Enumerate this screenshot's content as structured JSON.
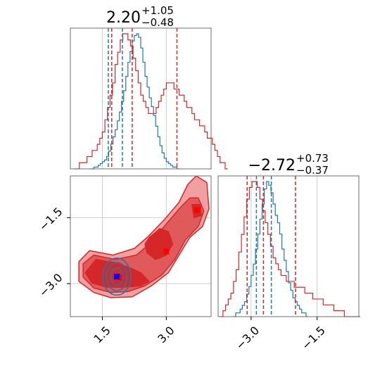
{
  "chart_data": {
    "type": "corner",
    "colors": {
      "series_a": "#1f77b4",
      "series_b": "#d62728",
      "fill_dark": "#d62728",
      "fill_mid": "#e05a5b",
      "fill_light": "#f0a0a1",
      "grid": "#cccccc",
      "axis": "#6e6e6e",
      "marker_a": "#0000ff",
      "marker_b": "#ff0000"
    },
    "parameters": [
      {
        "title_value": "2.20",
        "title_plus": "+1.05",
        "title_minus": "−0.48",
        "range": [
          0.75,
          4.05
        ],
        "ticks": [
          1.5,
          3.0
        ],
        "tick_labels": [
          "1.5",
          "3.0"
        ],
        "series_a_quantiles": [
          1.64,
          1.97
        ],
        "series_b_quantiles": [
          1.72,
          2.2,
          3.25
        ],
        "histogram_a": {
          "bin_width": 0.05,
          "start": 1.2,
          "counts": [
            0,
            0,
            1,
            1,
            2,
            3,
            4,
            5,
            7,
            10,
            14,
            18,
            22,
            27,
            32,
            38,
            44,
            52,
            60,
            66,
            72,
            75,
            76,
            74,
            68,
            60,
            52,
            46,
            40,
            35,
            30,
            24,
            18,
            13,
            9,
            6,
            4,
            3,
            2,
            1,
            1,
            0
          ]
        },
        "histogram_b": {
          "bin_width": 0.06,
          "start": 0.84,
          "counts": [
            0,
            0,
            1,
            1,
            1,
            2,
            2,
            3,
            3,
            4,
            5,
            6,
            8,
            10,
            12,
            14,
            17,
            19,
            21,
            22,
            22,
            21,
            20,
            18,
            16,
            14,
            12,
            11,
            10,
            9,
            9,
            9,
            10,
            11,
            12,
            13,
            14,
            14,
            14,
            13,
            13,
            12,
            12,
            11,
            10,
            10,
            9,
            8,
            8,
            7,
            7,
            6,
            5,
            5,
            4,
            3,
            2,
            1,
            1,
            0
          ]
        }
      },
      {
        "title_value": "−2.72",
        "title_plus": "+0.73",
        "title_minus": "−0.37",
        "range": [
          -3.75,
          -0.55
        ],
        "ticks": [
          -3.0,
          -1.5
        ],
        "tick_labels": [
          "−3.0",
          "−1.5"
        ],
        "series_a_quantiles": [
          -2.88,
          -2.54
        ],
        "series_b_quantiles": [
          -3.09,
          -2.72,
          -1.99
        ],
        "histogram_a": {
          "bin_width": 0.05,
          "start": -3.4,
          "counts": [
            0,
            1,
            1,
            2,
            3,
            4,
            6,
            8,
            11,
            14,
            18,
            22,
            26,
            30,
            34,
            36,
            35,
            33,
            30,
            27,
            25,
            22,
            18,
            15,
            12,
            9,
            7,
            5,
            4,
            3,
            2,
            1,
            1,
            0
          ]
        },
        "histogram_b": {
          "bin_width": 0.06,
          "start": -3.7,
          "counts": [
            0,
            1,
            2,
            3,
            4,
            6,
            8,
            11,
            14,
            17,
            20,
            22,
            23,
            23,
            22,
            20,
            18,
            16,
            14,
            12,
            10,
            9,
            8,
            7,
            7,
            6,
            6,
            6,
            5,
            5,
            5,
            5,
            4,
            4,
            4,
            3,
            3,
            3,
            3,
            2,
            2,
            2,
            2,
            1,
            1,
            1,
            1,
            0,
            0,
            0,
            0,
            0,
            0
          ]
        }
      }
    ],
    "joint": {
      "series_a_marker": [
        1.84,
        -2.84
      ],
      "series_b_markers": [
        [
          1.9,
          -2.86
        ],
        [
          3.0,
          -2.27
        ],
        [
          3.72,
          -1.33
        ]
      ],
      "series_a_contours": [
        {
          "cx": 1.84,
          "cy": -2.84,
          "rx": 0.33,
          "ry": 0.42
        },
        {
          "cx": 1.84,
          "cy": -2.84,
          "rx": 0.24,
          "ry": 0.32
        },
        {
          "cx": 1.84,
          "cy": -2.84,
          "rx": 0.14,
          "ry": 0.2
        }
      ],
      "series_b_regions": [
        {
          "level": "light",
          "points": [
            [
              1.2,
              -2.25
            ],
            [
              1.75,
              -2.35
            ],
            [
              2.25,
              -2.2
            ],
            [
              2.55,
              -1.95
            ],
            [
              2.95,
              -1.55
            ],
            [
              3.3,
              -1.15
            ],
            [
              3.5,
              -0.75
            ],
            [
              3.7,
              -0.55
            ],
            [
              3.95,
              -0.7
            ],
            [
              4.0,
              -1.3
            ],
            [
              3.85,
              -1.7
            ],
            [
              3.55,
              -1.95
            ],
            [
              3.3,
              -2.35
            ],
            [
              3.05,
              -2.75
            ],
            [
              2.65,
              -3.05
            ],
            [
              2.2,
              -3.3
            ],
            [
              1.7,
              -3.32
            ],
            [
              1.3,
              -3.2
            ],
            [
              0.95,
              -2.95
            ],
            [
              0.95,
              -2.5
            ]
          ]
        },
        {
          "level": "mid",
          "points": [
            [
              1.3,
              -2.35
            ],
            [
              1.8,
              -2.45
            ],
            [
              2.3,
              -2.35
            ],
            [
              2.6,
              -2.1
            ],
            [
              2.95,
              -1.7
            ],
            [
              3.3,
              -1.3
            ],
            [
              3.55,
              -1.05
            ],
            [
              3.75,
              -1.05
            ],
            [
              3.88,
              -1.35
            ],
            [
              3.75,
              -1.7
            ],
            [
              3.45,
              -2.0
            ],
            [
              3.2,
              -2.45
            ],
            [
              2.9,
              -2.8
            ],
            [
              2.5,
              -3.05
            ],
            [
              2.1,
              -3.18
            ],
            [
              1.7,
              -3.2
            ],
            [
              1.3,
              -3.1
            ],
            [
              1.05,
              -2.85
            ],
            [
              1.05,
              -2.55
            ]
          ]
        },
        {
          "level": "dark",
          "points": [
            [
              1.35,
              -2.45
            ],
            [
              1.8,
              -2.52
            ],
            [
              2.1,
              -2.62
            ],
            [
              2.4,
              -2.75
            ],
            [
              2.6,
              -2.95
            ],
            [
              2.4,
              -3.05
            ],
            [
              2.0,
              -3.08
            ],
            [
              1.6,
              -3.08
            ],
            [
              1.25,
              -2.98
            ],
            [
              1.1,
              -2.75
            ]
          ]
        },
        {
          "level": "dark",
          "points": [
            [
              2.6,
              -1.95
            ],
            [
              2.85,
              -1.75
            ],
            [
              3.05,
              -1.82
            ],
            [
              3.15,
              -2.1
            ],
            [
              3.0,
              -2.35
            ],
            [
              2.75,
              -2.45
            ],
            [
              2.55,
              -2.3
            ],
            [
              2.5,
              -2.1
            ]
          ]
        },
        {
          "level": "dark",
          "points": [
            [
              3.6,
              -1.2
            ],
            [
              3.8,
              -1.2
            ],
            [
              3.82,
              -1.45
            ],
            [
              3.65,
              -1.5
            ]
          ]
        }
      ]
    }
  }
}
